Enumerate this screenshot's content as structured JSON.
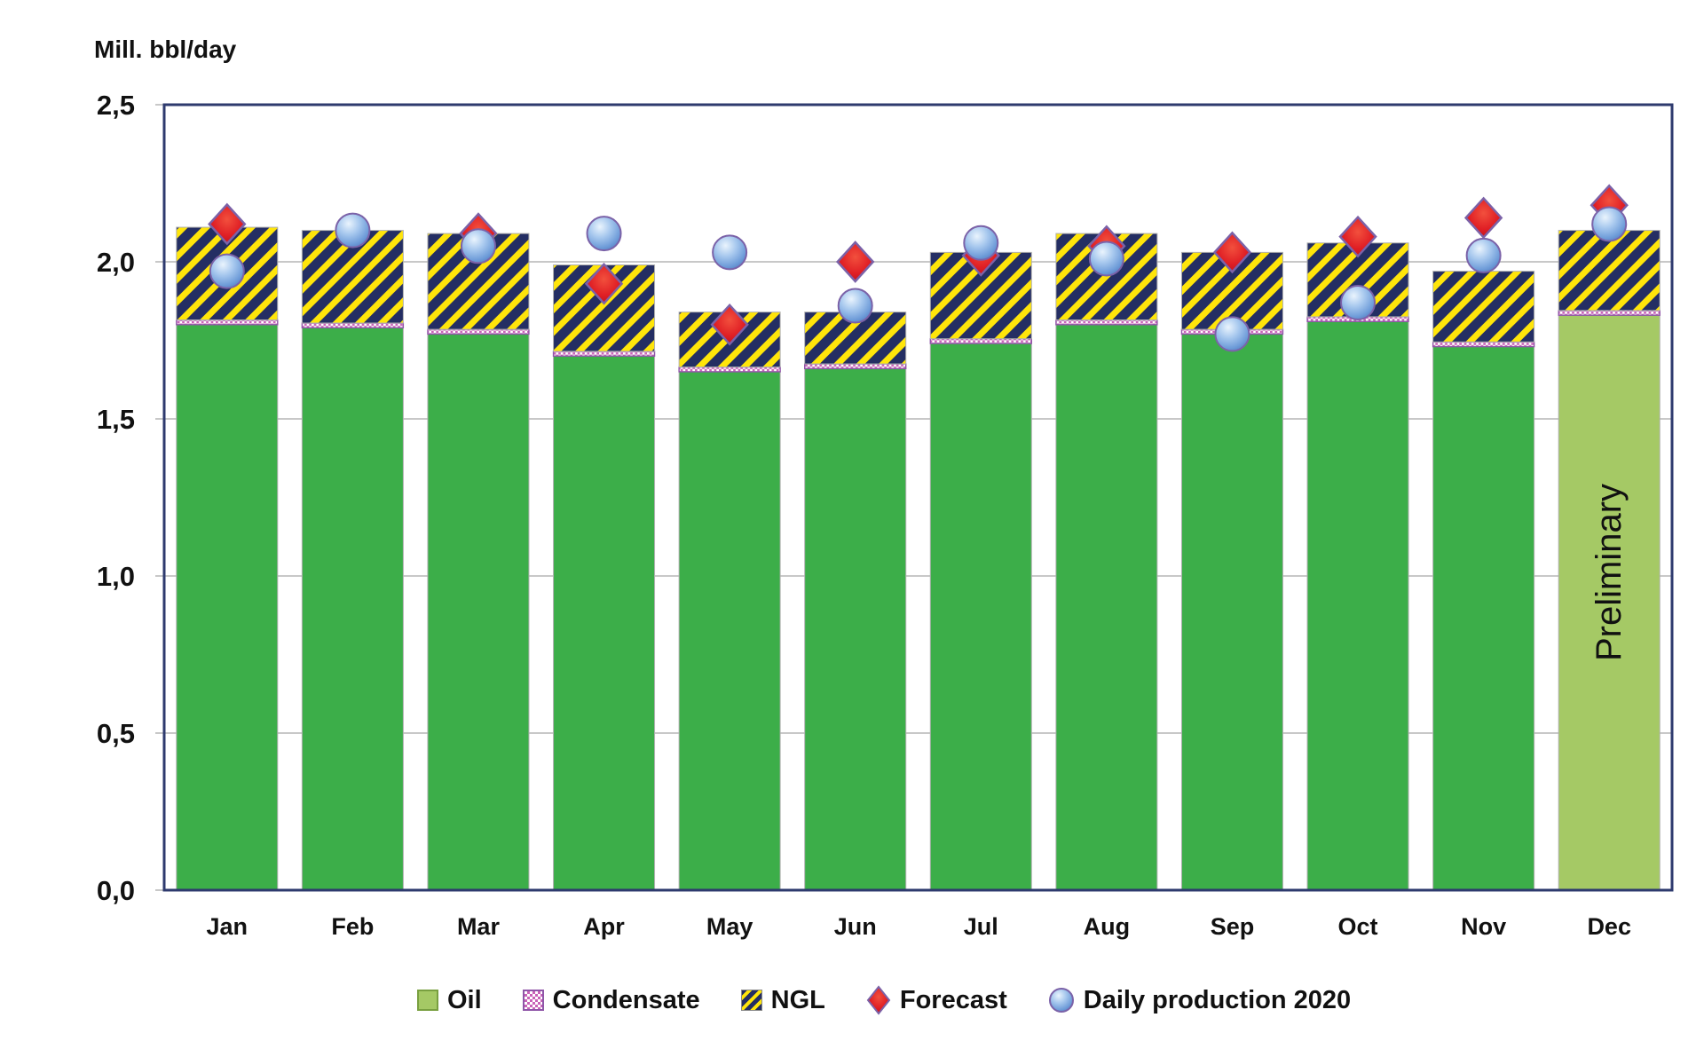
{
  "chart_data": {
    "type": "bar",
    "stacked": true,
    "title": "Mill. bbl/day",
    "ylabel": "Mill. bbl/day",
    "xlabel": "",
    "categories": [
      "Jan",
      "Feb",
      "Mar",
      "Apr",
      "May",
      "Jun",
      "Jul",
      "Aug",
      "Sep",
      "Oct",
      "Nov",
      "Dec"
    ],
    "ylim": [
      0,
      2.5
    ],
    "ytick_step": 0.5,
    "ytick_labels": [
      "0,0",
      "0,5",
      "1,0",
      "1,5",
      "2,0",
      "2,5"
    ],
    "grid": "horizontal",
    "legend_position": "bottom",
    "series": [
      {
        "name": "Oil",
        "type": "bar",
        "color": "#3cae49",
        "preliminary_color": "#a5c965",
        "values": [
          1.8,
          1.79,
          1.77,
          1.7,
          1.65,
          1.66,
          1.74,
          1.8,
          1.77,
          1.81,
          1.73,
          1.83
        ]
      },
      {
        "name": "Condensate",
        "type": "bar",
        "style": "pink-white-checker",
        "color": "#c963b8",
        "values": [
          0.015,
          0.015,
          0.015,
          0.015,
          0.015,
          0.015,
          0.015,
          0.015,
          0.015,
          0.015,
          0.015,
          0.015
        ]
      },
      {
        "name": "NGL",
        "type": "bar",
        "style": "navy-yellow-diagonal-hatch",
        "color": "#242e63",
        "stripe_color": "#ffe50a",
        "values": [
          0.295,
          0.295,
          0.305,
          0.275,
          0.175,
          0.165,
          0.275,
          0.275,
          0.245,
          0.235,
          0.225,
          0.255
        ]
      },
      {
        "name": "Forecast",
        "type": "scatter",
        "marker": "diamond",
        "color": "#d6192a",
        "values": [
          2.12,
          null,
          2.09,
          1.93,
          1.8,
          2.0,
          2.02,
          2.05,
          2.03,
          2.08,
          2.14,
          2.18
        ]
      },
      {
        "name": "Daily production 2020",
        "type": "scatter",
        "marker": "circle",
        "color": "#6f9fd8",
        "values": [
          1.97,
          2.1,
          2.05,
          2.09,
          2.03,
          1.86,
          2.06,
          2.01,
          1.77,
          1.87,
          2.02,
          2.12
        ]
      }
    ],
    "annotations": [
      {
        "text": "Preliminary",
        "category": "Dec"
      }
    ]
  },
  "colors": {
    "frame": "#2e3a6e",
    "gridline": "#c8c8c8",
    "text": "#111111",
    "oil_green": "#3cae49",
    "preliminary_green": "#a5c965",
    "ngl_navy": "#242e63",
    "ngl_yellow": "#ffe50a",
    "condensate_pink": "#c963b8",
    "condensate_border": "#8f55a8",
    "marker_outline": "#7b62a8"
  }
}
